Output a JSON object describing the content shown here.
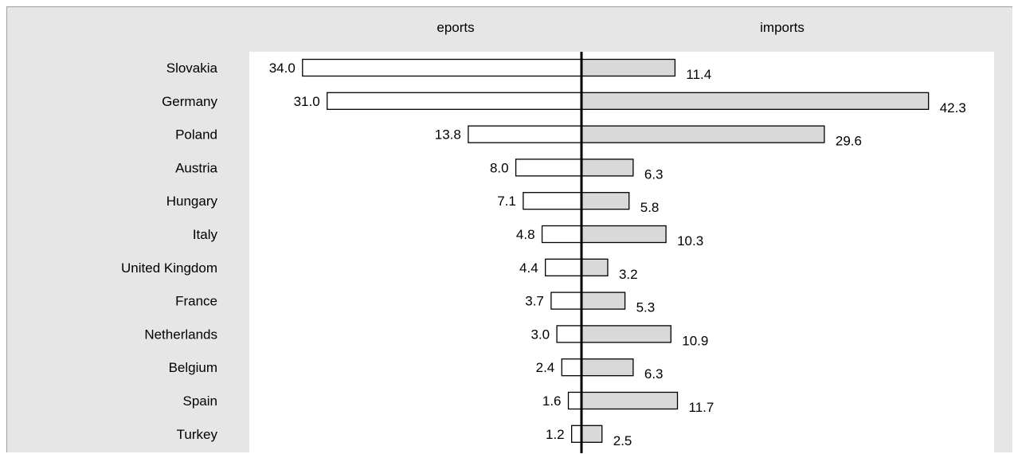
{
  "chart_data": {
    "type": "bar",
    "orientation": "horizontal-diverging",
    "categories": [
      "Slovakia",
      "Germany",
      "Poland",
      "Austria",
      "Hungary",
      "Italy",
      "United Kingdom",
      "France",
      "Netherlands",
      "Belgium",
      "Spain",
      "Turkey"
    ],
    "series": [
      {
        "name": "eports",
        "direction": "left",
        "color": "#ffffff",
        "values": [
          34.0,
          31.0,
          13.8,
          8.0,
          7.1,
          4.8,
          4.4,
          3.7,
          3.0,
          2.4,
          1.6,
          1.2
        ]
      },
      {
        "name": "imports",
        "direction": "right",
        "color": "#d9d9d9",
        "values": [
          11.4,
          42.3,
          29.6,
          6.3,
          5.8,
          10.3,
          3.2,
          5.3,
          10.9,
          6.3,
          11.7,
          2.5
        ]
      }
    ],
    "grid": false,
    "legend": "top",
    "colors": {
      "frame_background": "#e6e6e6",
      "plot_background": "#ffffff",
      "axis": "#000000",
      "bar_outline": "#000000"
    }
  }
}
